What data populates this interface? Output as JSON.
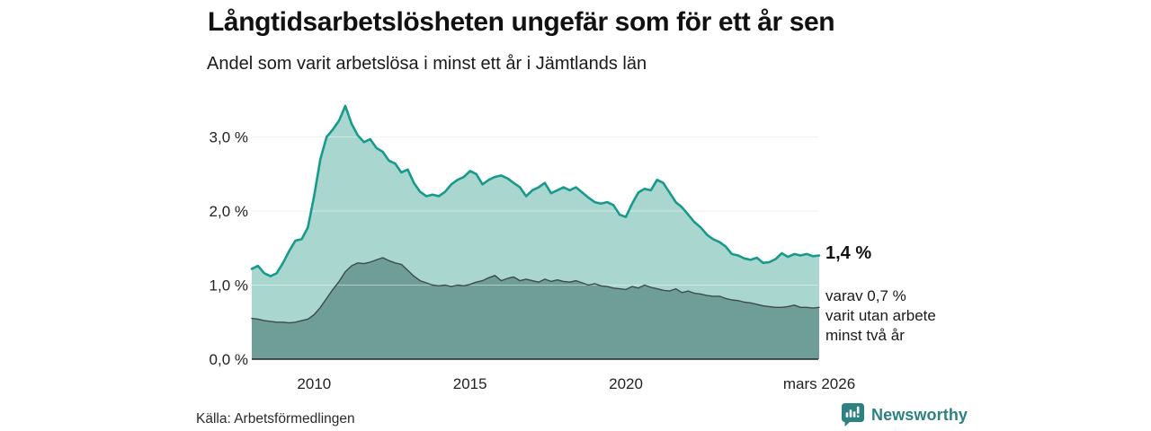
{
  "header": {
    "title": "Långtidsarbetslösheten ungefär som för ett år sen",
    "subtitle": "Andel som varit arbetslösa i minst ett år i Jämtlands län"
  },
  "annotations": {
    "total_end_label": "1,4 %",
    "subseries_line1": "varav 0,7 %",
    "subseries_line2": "varit utan arbete",
    "subseries_line3": "minst två år"
  },
  "footer": {
    "source": "Källa: Arbetsförmedlingen",
    "brand_name": "Newsworthy",
    "brand_icon": "newsworthy-speech-bubble-bar-chart-icon"
  },
  "colors": {
    "total_line": "#179a8c",
    "total_fill": "#aad6d0",
    "twoyear_line": "#3c4b49",
    "twoyear_fill": "#6f9e99",
    "grid": "#e7e7e7",
    "grid_overlay": "rgba(255,255,255,0.45)",
    "axis": "#222222",
    "tick_text": "#222222",
    "brand": "#2e8181"
  },
  "chart_data": {
    "type": "area",
    "title": "Långtidsarbetslösheten ungefär som för ett år sen",
    "subtitle": "Andel som varit arbetslösa i minst ett år i Jämtlands län",
    "xlabel": "",
    "ylabel": "",
    "ylim": [
      0,
      3.5
    ],
    "grid": true,
    "legend_position": "right-annotations",
    "x_start": 2008.0,
    "x_step": 0.2,
    "yticks": [
      {
        "v": 0,
        "label": "0,0 %"
      },
      {
        "v": 1,
        "label": "1,0 %"
      },
      {
        "v": 2,
        "label": "2,0 %"
      },
      {
        "v": 3,
        "label": "3,0 %"
      }
    ],
    "xticks": [
      {
        "t": 2010,
        "label": "2010"
      },
      {
        "t": 2015,
        "label": "2015"
      },
      {
        "t": 2020,
        "label": "2020"
      },
      {
        "t": 2026.2,
        "label": "mars 2026"
      }
    ],
    "series": [
      {
        "name": "Arbetslösa minst ett år (totalt)",
        "end_value": 1.4,
        "end_label": "1,4 %",
        "values": [
          1.22,
          1.26,
          1.16,
          1.12,
          1.16,
          1.3,
          1.46,
          1.6,
          1.62,
          1.78,
          2.2,
          2.7,
          3.0,
          3.1,
          3.22,
          3.42,
          3.18,
          3.02,
          2.93,
          2.97,
          2.85,
          2.8,
          2.68,
          2.64,
          2.52,
          2.56,
          2.38,
          2.26,
          2.2,
          2.22,
          2.2,
          2.26,
          2.36,
          2.42,
          2.46,
          2.54,
          2.5,
          2.36,
          2.42,
          2.46,
          2.48,
          2.44,
          2.38,
          2.32,
          2.2,
          2.28,
          2.32,
          2.38,
          2.24,
          2.28,
          2.32,
          2.28,
          2.32,
          2.25,
          2.18,
          2.12,
          2.1,
          2.12,
          2.08,
          1.95,
          1.92,
          2.1,
          2.25,
          2.3,
          2.28,
          2.42,
          2.38,
          2.25,
          2.12,
          2.05,
          1.95,
          1.85,
          1.78,
          1.68,
          1.62,
          1.58,
          1.52,
          1.42,
          1.4,
          1.36,
          1.34,
          1.37,
          1.3,
          1.31,
          1.35,
          1.43,
          1.38,
          1.42,
          1.4,
          1.42,
          1.39,
          1.4
        ]
      },
      {
        "name": "varav utan arbete minst två år",
        "end_value": 0.7,
        "end_label": "varav 0,7 % varit utan arbete minst två år",
        "values": [
          0.55,
          0.54,
          0.52,
          0.51,
          0.5,
          0.5,
          0.49,
          0.5,
          0.52,
          0.54,
          0.6,
          0.7,
          0.82,
          0.94,
          1.05,
          1.18,
          1.26,
          1.3,
          1.29,
          1.31,
          1.34,
          1.37,
          1.33,
          1.3,
          1.28,
          1.2,
          1.12,
          1.06,
          1.03,
          1.0,
          0.99,
          1.0,
          0.98,
          1.0,
          0.99,
          1.01,
          1.04,
          1.06,
          1.1,
          1.13,
          1.06,
          1.09,
          1.11,
          1.06,
          1.08,
          1.06,
          1.04,
          1.08,
          1.05,
          1.07,
          1.05,
          1.04,
          1.06,
          1.03,
          1.0,
          1.02,
          0.99,
          0.98,
          0.96,
          0.95,
          0.94,
          0.98,
          0.96,
          1.0,
          0.97,
          0.95,
          0.93,
          0.92,
          0.95,
          0.9,
          0.92,
          0.89,
          0.88,
          0.86,
          0.85,
          0.85,
          0.82,
          0.8,
          0.79,
          0.77,
          0.76,
          0.74,
          0.72,
          0.71,
          0.7,
          0.7,
          0.71,
          0.73,
          0.7,
          0.7,
          0.69,
          0.7
        ]
      }
    ]
  }
}
